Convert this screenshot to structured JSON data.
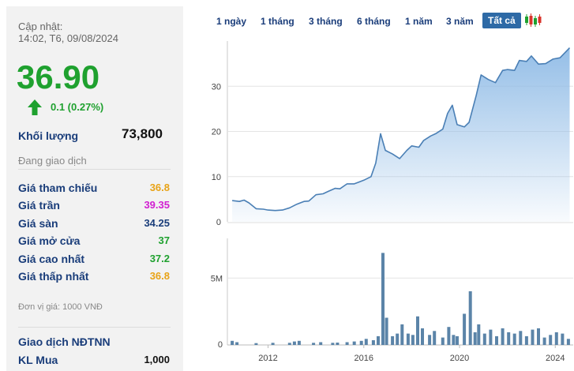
{
  "stock": {
    "update_label": "Cập nhật:",
    "update_time": "14:02, T6, 09/08/2024",
    "price": "36.90",
    "change": "0.1 (0.27%)",
    "volume_label": "Khối lượng",
    "volume_value": "73,800",
    "status": "Đang giao dịch",
    "rows": [
      {
        "label": "Giá tham chiếu",
        "value": "36.8",
        "color": "#e8a317"
      },
      {
        "label": "Giá trần",
        "value": "39.35",
        "color": "#d11fd1"
      },
      {
        "label": "Giá sàn",
        "value": "34.25",
        "color": "#1a3d7a"
      },
      {
        "label": "Giá mở cửa",
        "value": "37",
        "color": "#1fa12f"
      },
      {
        "label": "Giá cao nhất",
        "value": "37.2",
        "color": "#1fa12f"
      },
      {
        "label": "Giá thấp nhất",
        "value": "36.8",
        "color": "#e8a317"
      }
    ],
    "unit_note": "Đơn vị giá: 1000 VNĐ",
    "foreign_label": "Giao dịch NĐTNN",
    "buy_label": "KL Mua",
    "buy_value": "1,000"
  },
  "range_tabs": [
    "1 ngày",
    "1 tháng",
    "3 tháng",
    "6 tháng",
    "1 năm",
    "3 năm",
    "Tất cả"
  ],
  "active_tab": "Tất cả",
  "icons": {
    "candlestick": "candlestick-chart-icon",
    "up_arrow": "up-arrow-icon"
  },
  "colors": {
    "up": "#1fa12f",
    "accent": "#2e6aa6",
    "line": "#4a7fb5",
    "bar": "#5b84a8"
  },
  "chart_data": {
    "type": "area",
    "price_chart": {
      "x": [
        2010.5,
        2010.8,
        2011.0,
        2011.2,
        2011.5,
        2011.8,
        2012.0,
        2012.3,
        2012.6,
        2012.9,
        2013.2,
        2013.5,
        2013.7,
        2014.0,
        2014.3,
        2014.5,
        2014.8,
        2015.0,
        2015.3,
        2015.6,
        2015.8,
        2016.0,
        2016.3,
        2016.5,
        2016.7,
        2016.9,
        2017.2,
        2017.5,
        2017.8,
        2018.0,
        2018.3,
        2018.5,
        2018.8,
        2019.0,
        2019.3,
        2019.5,
        2019.7,
        2019.9,
        2020.2,
        2020.4,
        2020.7,
        2020.9,
        2021.2,
        2021.5,
        2021.8,
        2022.0,
        2022.3,
        2022.5,
        2022.8,
        2023.0,
        2023.3,
        2023.6,
        2023.9,
        2024.2,
        2024.6
      ],
      "y": [
        4.7,
        4.5,
        4.8,
        4.2,
        2.9,
        2.8,
        2.6,
        2.5,
        2.6,
        3.1,
        3.9,
        4.5,
        4.6,
        6.0,
        6.2,
        6.7,
        7.4,
        7.3,
        8.4,
        8.4,
        8.8,
        9.2,
        10.0,
        13.0,
        19.5,
        15.8,
        15.0,
        14.0,
        15.8,
        16.8,
        16.5,
        18.0,
        19.0,
        19.5,
        20.5,
        24.0,
        25.8,
        21.5,
        21.0,
        22.0,
        28.0,
        32.5,
        31.5,
        30.8,
        33.5,
        33.7,
        33.5,
        35.7,
        35.5,
        36.7,
        34.9,
        35.0,
        36.0,
        36.3,
        38.5
      ],
      "ylim": [
        0,
        40
      ],
      "yticks": [
        0,
        10,
        20,
        30
      ]
    },
    "volume_chart": {
      "x": [
        2010.5,
        2010.7,
        2011.5,
        2012.2,
        2012.9,
        2013.1,
        2013.3,
        2013.9,
        2014.2,
        2014.7,
        2014.9,
        2015.3,
        2015.6,
        2015.9,
        2016.1,
        2016.4,
        2016.6,
        2016.8,
        2016.95,
        2017.2,
        2017.4,
        2017.6,
        2017.85,
        2018.05,
        2018.25,
        2018.45,
        2018.75,
        2018.95,
        2019.3,
        2019.55,
        2019.75,
        2019.9,
        2020.2,
        2020.45,
        2020.65,
        2020.8,
        2021.05,
        2021.3,
        2021.55,
        2021.8,
        2022.05,
        2022.3,
        2022.55,
        2022.8,
        2023.05,
        2023.3,
        2023.55,
        2023.8,
        2024.05,
        2024.3,
        2024.55
      ],
      "y": [
        0.25,
        0.15,
        0.08,
        0.1,
        0.1,
        0.2,
        0.25,
        0.1,
        0.15,
        0.1,
        0.12,
        0.15,
        0.2,
        0.25,
        0.4,
        0.3,
        0.6,
        6.9,
        2.0,
        0.6,
        0.8,
        1.5,
        0.8,
        0.7,
        2.1,
        1.2,
        0.7,
        1.0,
        0.5,
        1.3,
        0.7,
        0.6,
        2.3,
        4.0,
        0.9,
        1.5,
        0.8,
        1.1,
        0.6,
        1.2,
        0.9,
        0.8,
        1.0,
        0.6,
        1.1,
        1.2,
        0.5,
        0.7,
        0.9,
        0.8,
        0.4
      ],
      "ylim": [
        0,
        8
      ],
      "ytick_labels": [
        {
          "value": 0,
          "label": "0"
        },
        {
          "value": 5,
          "label": "5M"
        }
      ]
    },
    "xticks": [
      2012,
      2016,
      2020,
      2024
    ],
    "grid": true
  }
}
